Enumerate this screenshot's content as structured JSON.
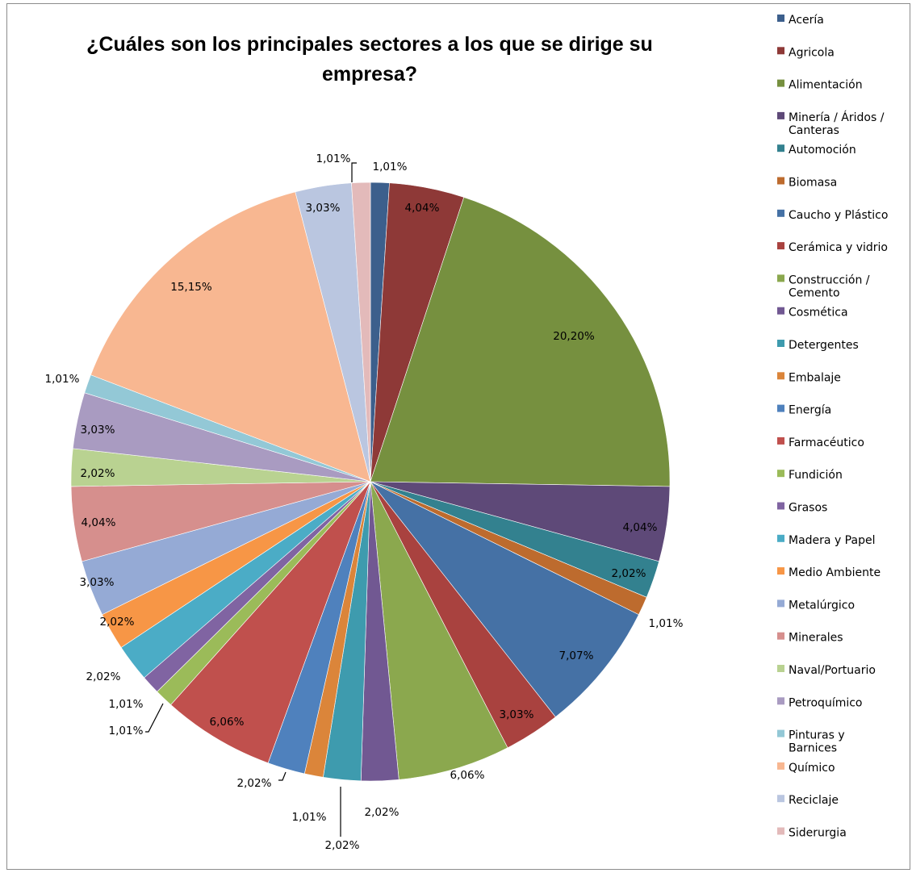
{
  "chart_data": {
    "type": "pie",
    "title_lines": [
      "¿Cuáles son los principales sectores a los que se dirige su",
      "empresa?"
    ],
    "legend_position": "right",
    "slices": [
      {
        "name": "Acería",
        "value": 1.01,
        "label": "1,01%",
        "color": "#3C5F8C"
      },
      {
        "name": "Agricola",
        "value": 4.04,
        "label": "4,04%",
        "color": "#8E3937"
      },
      {
        "name": "Alimentación",
        "value": 20.2,
        "label": "20,20%",
        "color": "#76903F"
      },
      {
        "name": "Minería / Áridos / Canteras",
        "value": 4.04,
        "label": "4,04%",
        "color": "#5E4978"
      },
      {
        "name": "Automoción",
        "value": 2.02,
        "label": "2,02%",
        "color": "#33818F"
      },
      {
        "name": "Biomasa",
        "value": 1.01,
        "label": "1,01%",
        "color": "#BD6B2E"
      },
      {
        "name": "Caucho y Plástico",
        "value": 7.07,
        "label": "7,07%",
        "color": "#4571A5"
      },
      {
        "name": "Cerámica y vidrio",
        "value": 3.03,
        "label": "3,03%",
        "color": "#A9423F"
      },
      {
        "name": "Construcción / Cemento",
        "value": 6.06,
        "label": "6,06%",
        "color": "#8BA84E"
      },
      {
        "name": "Cosmética",
        "value": 2.02,
        "label": "2,02%",
        "color": "#715892"
      },
      {
        "name": "Detergentes",
        "value": 2.02,
        "label": "2,02%",
        "color": "#3E9BAE"
      },
      {
        "name": "Embalaje",
        "value": 1.01,
        "label": "1,01%",
        "color": "#DB853A"
      },
      {
        "name": "Energía",
        "value": 2.02,
        "label": "2,02%",
        "color": "#4F81BD"
      },
      {
        "name": "Farmacéutico",
        "value": 6.06,
        "label": "6,06%",
        "color": "#C0504D"
      },
      {
        "name": "Fundición",
        "value": 1.01,
        "label": "1,01%",
        "color": "#9BBB59"
      },
      {
        "name": "Grasos",
        "value": 1.01,
        "label": "1,01%",
        "color": "#8064A2"
      },
      {
        "name": "Madera y Papel",
        "value": 2.02,
        "label": "2,02%",
        "color": "#4BACC6"
      },
      {
        "name": "Medio Ambiente",
        "value": 2.02,
        "label": "2,02%",
        "color": "#F79646"
      },
      {
        "name": "Metalúrgico",
        "value": 3.03,
        "label": "3,03%",
        "color": "#95AAD5"
      },
      {
        "name": "Minerales",
        "value": 4.04,
        "label": "4,04%",
        "color": "#D68F8D"
      },
      {
        "name": "Naval/Portuario",
        "value": 2.02,
        "label": "2,02%",
        "color": "#B9D291"
      },
      {
        "name": "Petroquímico",
        "value": 3.03,
        "label": "3,03%",
        "color": "#A99BC1"
      },
      {
        "name": "Pinturas y Barnices",
        "value": 1.01,
        "label": "1,01%",
        "color": "#93C8D6"
      },
      {
        "name": "Químico",
        "value": 15.15,
        "label": "15,15%",
        "color": "#F8B791"
      },
      {
        "name": "Reciclaje",
        "value": 3.03,
        "label": "3,03%",
        "color": "#BAC6E0"
      },
      {
        "name": "Siderurgia",
        "value": 1.01,
        "label": "1,01%",
        "color": "#E3BABA"
      }
    ]
  }
}
